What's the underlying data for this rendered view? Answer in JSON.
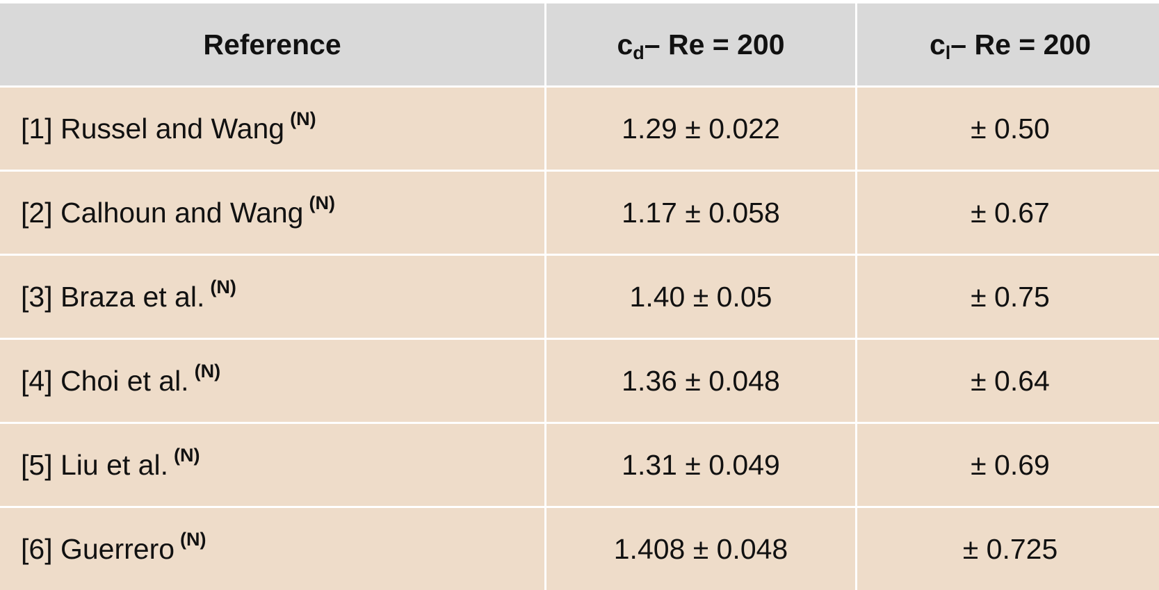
{
  "header": {
    "reference": "Reference",
    "cd_base": "c",
    "cd_sub": "d",
    "cd_rest": " – Re = 200",
    "cl_base": "c",
    "cl_sub": "l",
    "cl_rest": " – Re = 200"
  },
  "rows": [
    {
      "ref": "[1] Russel and Wang ",
      "note": "(N)",
      "cd": "1.29 ± 0.022",
      "cl": "± 0.50"
    },
    {
      "ref": "[2] Calhoun and Wang ",
      "note": "(N)",
      "cd": "1.17 ± 0.058",
      "cl": "± 0.67"
    },
    {
      "ref": "[3] Braza et al. ",
      "note": "(N)",
      "cd": "1.40 ± 0.05",
      "cl": "± 0.75"
    },
    {
      "ref": "[4] Choi et al. ",
      "note": "(N)",
      "cd": "1.36 ± 0.048",
      "cl": "± 0.64"
    },
    {
      "ref": "[5] Liu et al. ",
      "note": "(N)",
      "cd": "1.31 ± 0.049",
      "cl": "± 0.69"
    },
    {
      "ref": "[6] Guerrero ",
      "note": "(N)",
      "cd": "1.408 ± 0.048",
      "cl": "± 0.725"
    }
  ],
  "colors": {
    "header_bg": "#d9d9d9",
    "body_bg": "#eedcc9"
  }
}
